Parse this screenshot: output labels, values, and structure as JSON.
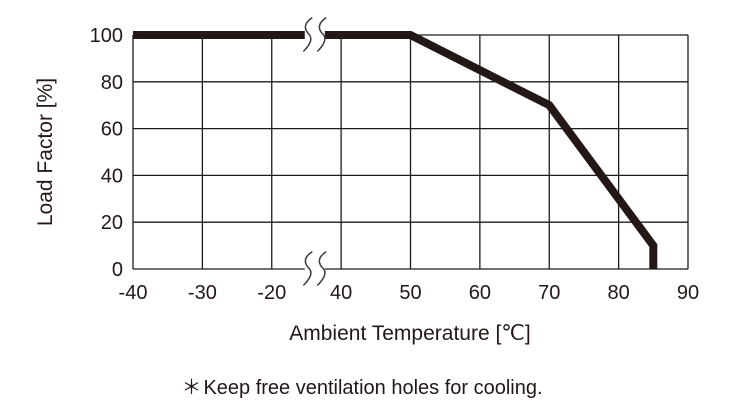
{
  "chart": {
    "y_axis_title": "Load Factor [%]",
    "x_axis_title": "Ambient Temperature [℃]",
    "footnote": {
      "marker": "＊",
      "text": "Keep free ventilation holes for cooling."
    }
  },
  "chart_data": {
    "type": "line",
    "title": "",
    "xlabel": "Ambient Temperature [℃]",
    "ylabel": "Load Factor [%]",
    "x_ticks": [
      -40,
      -30,
      -20,
      40,
      50,
      60,
      70,
      80,
      90
    ],
    "y_ticks": [
      0,
      20,
      40,
      60,
      80,
      100
    ],
    "ylim": [
      0,
      100
    ],
    "axis_break": {
      "axis": "x",
      "between": [
        -20,
        40
      ]
    },
    "grid": true,
    "series": [
      {
        "name": "load-factor-derating-curve",
        "points": [
          [
            -40,
            100
          ],
          [
            50,
            100
          ],
          [
            70,
            70
          ],
          [
            85,
            10
          ],
          [
            85,
            0
          ]
        ]
      }
    ],
    "line_color": "#231815",
    "grid_color": "#1c1c1c",
    "background_color": "#ffffff",
    "annotations": [
      "＊Keep free ventilation holes for cooling."
    ]
  }
}
